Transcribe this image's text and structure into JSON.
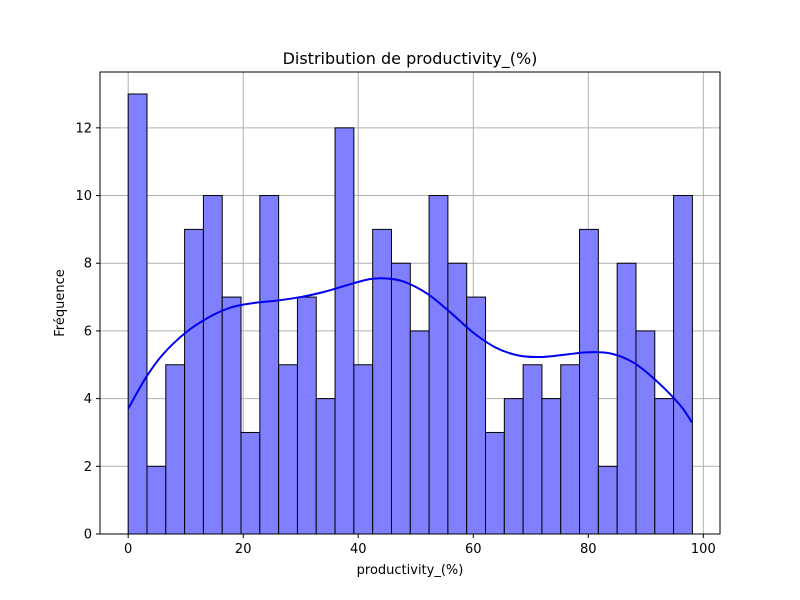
{
  "chart_data": {
    "type": "bar",
    "title": "Distribution de productivity_(%)",
    "xlabel": "productivity_(%)",
    "ylabel": "Fréquence",
    "xlim": [
      -4.9,
      102.9
    ],
    "ylim": [
      0,
      13.65
    ],
    "x_ticks": [
      "0",
      "20",
      "40",
      "60",
      "80",
      "100"
    ],
    "x_tick_values": [
      0,
      20,
      40,
      60,
      80,
      100
    ],
    "y_ticks": [
      "0",
      "2",
      "4",
      "6",
      "8",
      "10",
      "12"
    ],
    "y_tick_values": [
      0,
      2,
      4,
      6,
      8,
      10,
      12
    ],
    "grid": true,
    "bin_start": 0,
    "bin_width": 3.27,
    "values": [
      13,
      2,
      5,
      9,
      10,
      7,
      3,
      10,
      5,
      7,
      4,
      12,
      5,
      9,
      8,
      6,
      10,
      8,
      7,
      3,
      4,
      5,
      4,
      5,
      9,
      2,
      8,
      6,
      4,
      10
    ],
    "kde": {
      "x": [
        0,
        3,
        6,
        10,
        14,
        18,
        22,
        26,
        30,
        34,
        38,
        42,
        45,
        48,
        52,
        56,
        60,
        64,
        68,
        72,
        76,
        80,
        84,
        88,
        92,
        96,
        98
      ],
      "y": [
        3.7,
        4.6,
        5.3,
        5.95,
        6.4,
        6.7,
        6.83,
        6.9,
        7.0,
        7.15,
        7.35,
        7.53,
        7.55,
        7.45,
        7.1,
        6.55,
        5.95,
        5.5,
        5.27,
        5.23,
        5.3,
        5.37,
        5.33,
        5.05,
        4.5,
        3.8,
        3.3
      ]
    },
    "colors": {
      "bar_fill": "#8080ff",
      "bar_edge": "#000000",
      "kde_line": "#0000ee"
    }
  }
}
